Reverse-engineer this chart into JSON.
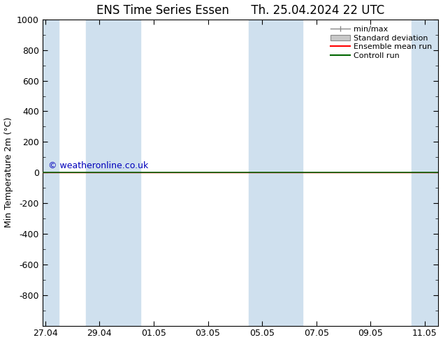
{
  "title_left": "ENS Time Series Essen",
  "title_right": "Th. 25.04.2024 22 UTC",
  "ylabel": "Min Temperature 2m (°C)",
  "ylim_top": -1000,
  "ylim_bottom": 1000,
  "yticks": [
    -800,
    -600,
    -400,
    -200,
    0,
    200,
    400,
    600,
    800,
    1000
  ],
  "xtick_labels": [
    "27.04",
    "29.04",
    "01.05",
    "03.05",
    "05.05",
    "07.05",
    "09.05",
    "11.05"
  ],
  "xtick_positions": [
    0,
    2,
    4,
    6,
    8,
    10,
    12,
    14
  ],
  "xlim": [
    -0.1,
    14.5
  ],
  "shaded_columns": [
    {
      "x_start": -0.1,
      "x_end": 0.5
    },
    {
      "x_start": 1.5,
      "x_end": 3.5
    },
    {
      "x_start": 7.5,
      "x_end": 9.5
    },
    {
      "x_start": 13.5,
      "x_end": 14.5
    }
  ],
  "shade_color": "#cfe0ee",
  "green_line_color": "#006600",
  "red_line_color": "#ff0000",
  "watermark_text": "© weatheronline.co.uk",
  "watermark_color": "#0000bb",
  "legend_labels": [
    "min/max",
    "Standard deviation",
    "Ensemble mean run",
    "Controll run"
  ],
  "background_color": "#ffffff",
  "title_fontsize": 12,
  "axis_fontsize": 9,
  "legend_fontsize": 8
}
